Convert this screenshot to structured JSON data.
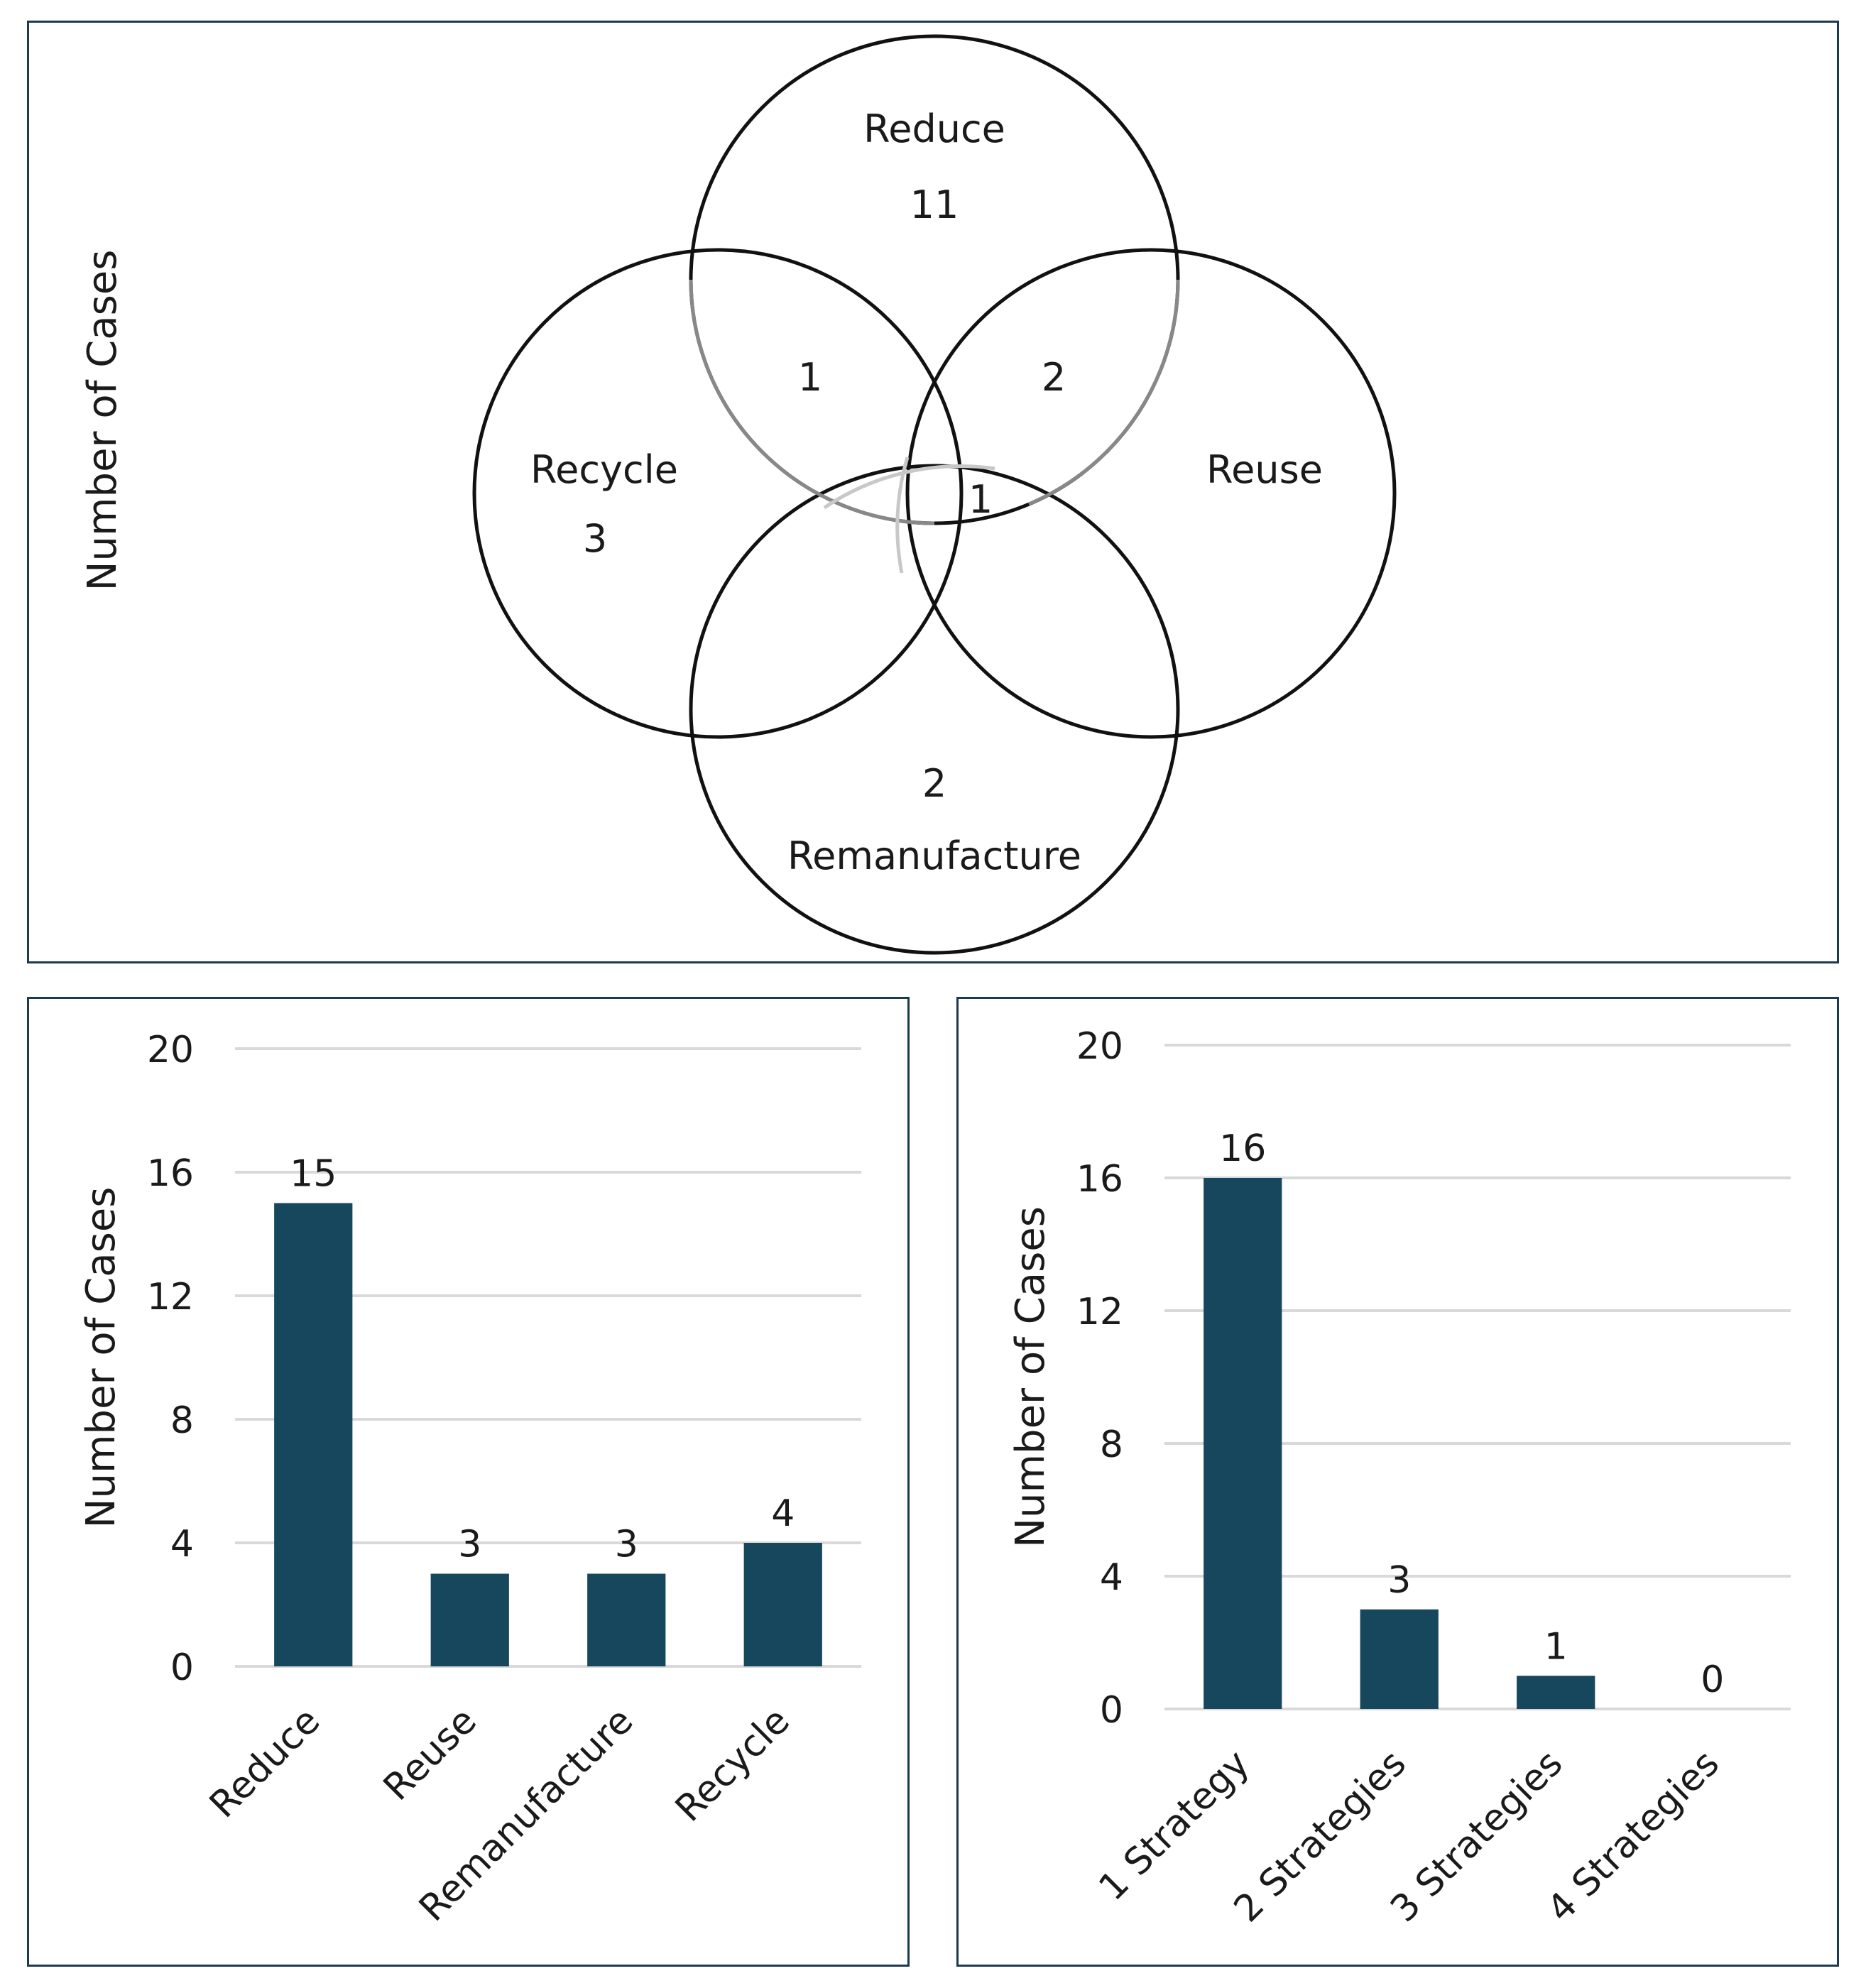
{
  "colors": {
    "bar": "#16475c",
    "grid": "#d9d9d9",
    "border": "#1c3a4e",
    "circle_dark": "#111111",
    "circle_mid": "#777777",
    "circle_light": "#c8c8c8"
  },
  "venn": {
    "ylabel": "Number of Cases",
    "labels": {
      "reduce": "Reduce",
      "reuse": "Reuse",
      "recycle": "Recycle",
      "remanufacture": "Remanufacture"
    },
    "counts": {
      "reduce_only": "11",
      "recycle_only": "3",
      "remanufacture_only": "2",
      "reduce_recycle": "1",
      "reduce_reuse": "2",
      "center": "1"
    }
  },
  "chart_data": [
    {
      "type": "bar",
      "title": "",
      "xlabel": "",
      "ylabel": "Number of Cases",
      "categories": [
        "Reduce",
        "Reuse",
        "Remanufacture",
        "Recycle"
      ],
      "values": [
        15,
        3,
        3,
        4
      ],
      "ylim": [
        0,
        20
      ],
      "yticks": [
        0,
        4,
        8,
        12,
        16,
        20
      ],
      "grid": true
    },
    {
      "type": "bar",
      "title": "",
      "xlabel": "",
      "ylabel": "Number of Cases",
      "categories": [
        "1 Strategy",
        "2 Strategies",
        "3 Strategies",
        "4 Strategies"
      ],
      "values": [
        16,
        3,
        1,
        0
      ],
      "ylim": [
        0,
        20
      ],
      "yticks": [
        0,
        4,
        8,
        12,
        16,
        20
      ],
      "grid": true
    }
  ]
}
